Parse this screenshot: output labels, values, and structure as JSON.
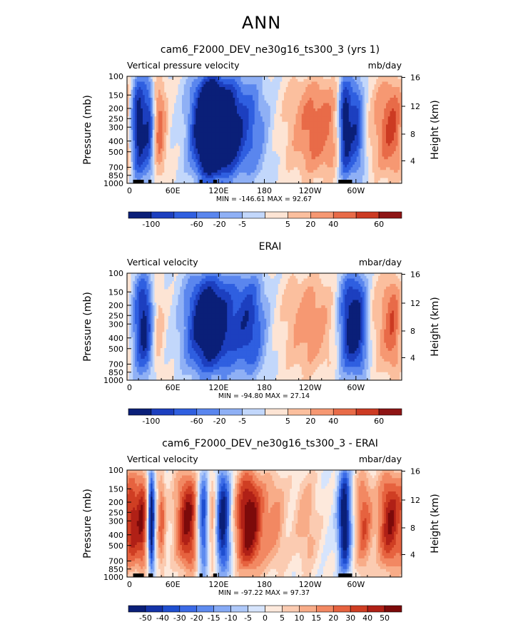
{
  "page": {
    "title": "ANN"
  },
  "palette": {
    "cb1": [
      "#0a1f78",
      "#1c3fbf",
      "#2f5fe0",
      "#5a86ee",
      "#8fb0f5",
      "#c2d7fb",
      "#fde4d4",
      "#fbbf9e",
      "#f69872",
      "#e86b48",
      "#cc3a22",
      "#8e1414"
    ],
    "cb3": [
      "#0a1f78",
      "#1433a8",
      "#1f4fd0",
      "#3b6ae6",
      "#5e8bef",
      "#86aaf5",
      "#aec8f9",
      "#d6e4fc",
      "#fde9dc",
      "#fbcbb1",
      "#f8ac88",
      "#f28862",
      "#e6623f",
      "#cf3e23",
      "#b02016",
      "#7c0a0a"
    ]
  },
  "chart_data": [
    {
      "type": "heatmap",
      "title": "cam6_F2000_DEV_ne30g16_ts300_3 (yrs 1)",
      "left_label": "Vertical pressure velocity",
      "units": "mb/day",
      "ylabel": "Pressure (mb)",
      "right_ylabel": "Height (km)",
      "stats": "MIN = -146.61   MAX =  92.67",
      "y_ticks": [
        "100",
        "150",
        "200",
        "250",
        "300",
        "400",
        "500",
        "700",
        "850",
        "1000"
      ],
      "y_right_ticks": [
        "16",
        "12",
        "8",
        "4"
      ],
      "x_ticks": [
        "0",
        "60E",
        "120E",
        "180",
        "120W",
        "60W"
      ],
      "xlim": [
        0,
        360
      ],
      "colorbar_labels": [
        "-100",
        "-60",
        "-20",
        "-5",
        "5",
        "20",
        "40",
        "60"
      ],
      "colorbar": "cb1",
      "features": [
        {
          "lon": 15,
          "w": 8,
          "a": -1.0
        },
        {
          "lon": 30,
          "w": 5,
          "a": -0.6
        },
        {
          "lon": 42,
          "w": 7,
          "a": 0.55
        },
        {
          "lon": 95,
          "w": 12,
          "a": -0.7
        },
        {
          "lon": 110,
          "w": 10,
          "a": -0.85
        },
        {
          "lon": 125,
          "w": 14,
          "a": -0.8
        },
        {
          "lon": 145,
          "w": 16,
          "a": -0.5
        },
        {
          "lon": 170,
          "w": 14,
          "a": -0.3
        },
        {
          "lon": 250,
          "w": 28,
          "a": 0.55
        },
        {
          "lon": 285,
          "w": 6,
          "a": -1.0
        },
        {
          "lon": 300,
          "w": 8,
          "a": -0.8
        },
        {
          "lon": 330,
          "w": 14,
          "a": 0.2
        },
        {
          "lon": 350,
          "w": 14,
          "a": 0.55
        }
      ],
      "topo": [
        [
          8,
          22
        ],
        [
          28,
          32
        ],
        [
          95,
          99
        ],
        [
          113,
          118
        ],
        [
          277,
          295
        ]
      ]
    },
    {
      "type": "heatmap",
      "title": "ERAI",
      "left_label": "Vertical velocity",
      "units": "mbar/day",
      "ylabel": "Pressure (mb)",
      "right_ylabel": "Height (km)",
      "stats": "MIN =  -94.80   MAX =  27.14",
      "y_ticks": [
        "100",
        "150",
        "200",
        "250",
        "300",
        "400",
        "500",
        "700",
        "850",
        "1000"
      ],
      "y_right_ticks": [
        "16",
        "12",
        "8",
        "4"
      ],
      "x_ticks": [
        "0",
        "60E",
        "120E",
        "180",
        "120W",
        "60W"
      ],
      "xlim": [
        0,
        360
      ],
      "colorbar_labels": [
        "-100",
        "-60",
        "-20",
        "-5",
        "5",
        "20",
        "40",
        "60"
      ],
      "colorbar": "cb1",
      "features": [
        {
          "lon": 22,
          "w": 10,
          "a": -0.85
        },
        {
          "lon": 40,
          "w": 6,
          "a": 0.35
        },
        {
          "lon": 95,
          "w": 16,
          "a": -0.7
        },
        {
          "lon": 120,
          "w": 16,
          "a": -0.75
        },
        {
          "lon": 160,
          "w": 16,
          "a": -0.7
        },
        {
          "lon": 240,
          "w": 26,
          "a": 0.4
        },
        {
          "lon": 290,
          "w": 10,
          "a": -0.8
        },
        {
          "lon": 305,
          "w": 8,
          "a": -0.6
        },
        {
          "lon": 335,
          "w": 12,
          "a": 0.3
        },
        {
          "lon": 350,
          "w": 8,
          "a": 0.45
        }
      ],
      "topo": []
    },
    {
      "type": "heatmap",
      "title": "cam6_F2000_DEV_ne30g16_ts300_3 - ERAI",
      "left_label": "Vertical velocity",
      "units": "mbar/day",
      "ylabel": "Pressure (mb)",
      "right_ylabel": "Height (km)",
      "stats": "MIN =  -97.22   MAX =  97.37",
      "y_ticks": [
        "100",
        "150",
        "200",
        "250",
        "300",
        "400",
        "500",
        "700",
        "850",
        "1000"
      ],
      "y_right_ticks": [
        "16",
        "12",
        "8",
        "4"
      ],
      "x_ticks": [
        "0",
        "60E",
        "120E",
        "180",
        "120W",
        "60W"
      ],
      "xlim": [
        0,
        360
      ],
      "colorbar_labels": [
        "-50",
        "-40",
        "-30",
        "-20",
        "-15",
        "-10",
        "-5",
        "0",
        "5",
        "10",
        "15",
        "20",
        "30",
        "40",
        "50"
      ],
      "colorbar": "cb3",
      "features": [
        {
          "lon": 8,
          "w": 6,
          "a": 0.6
        },
        {
          "lon": 20,
          "w": 5,
          "a": 0.7
        },
        {
          "lon": 32,
          "w": 3,
          "a": -1.0
        },
        {
          "lon": 45,
          "w": 4,
          "a": 0.5
        },
        {
          "lon": 80,
          "w": 12,
          "a": 0.85
        },
        {
          "lon": 100,
          "w": 6,
          "a": -0.9
        },
        {
          "lon": 112,
          "w": 6,
          "a": 0.6
        },
        {
          "lon": 125,
          "w": 8,
          "a": -1.0
        },
        {
          "lon": 160,
          "w": 14,
          "a": 0.95
        },
        {
          "lon": 195,
          "w": 10,
          "a": 0.35
        },
        {
          "lon": 235,
          "w": 12,
          "a": 0.3
        },
        {
          "lon": 285,
          "w": 6,
          "a": -1.0
        },
        {
          "lon": 310,
          "w": 8,
          "a": 0.55
        },
        {
          "lon": 345,
          "w": 12,
          "a": 0.8
        }
      ],
      "topo": [
        [
          8,
          22
        ],
        [
          28,
          34
        ],
        [
          95,
          99
        ],
        [
          113,
          118
        ],
        [
          277,
          295
        ]
      ]
    }
  ]
}
